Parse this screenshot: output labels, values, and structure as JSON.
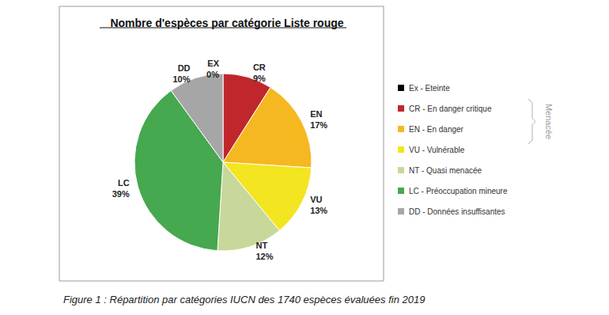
{
  "chart_data": {
    "type": "pie",
    "title": "Nombre d'espèces par catégorie Liste rouge",
    "categories": [
      "EX",
      "CR",
      "EN",
      "VU",
      "NT",
      "LC",
      "DD"
    ],
    "values": [
      0,
      9,
      17,
      13,
      12,
      39,
      10
    ],
    "value_labels": [
      "0%",
      "9%",
      "17%",
      "13%",
      "12%",
      "39%",
      "10%"
    ],
    "colors": [
      "#000000",
      "#c0272d",
      "#f5b820",
      "#f3e51f",
      "#c8d89a",
      "#46a84f",
      "#a6a6a6"
    ],
    "data_labels": true,
    "legend": "right",
    "legend_labels": [
      "Ex - Eteinte",
      "CR - En danger critique",
      "EN - En danger",
      "VU - Vulnérable",
      "NT - Quasi menacée",
      "LC - Préoccupation mineure",
      "DD - Données insuffisantes"
    ],
    "annotation": "Menacée",
    "caption": "Figure 1 : Répartition par catégories IUCN des 1740 espèces évaluées fin 2019"
  }
}
